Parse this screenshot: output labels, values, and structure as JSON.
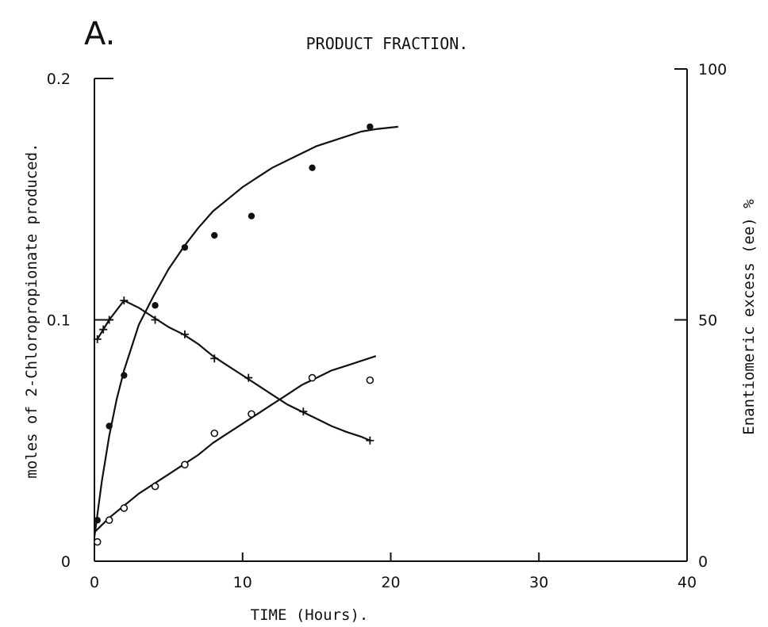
{
  "chart_data": {
    "type": "scatter",
    "panel_label": "A.",
    "title": "PRODUCT FRACTION.",
    "xlabel": "TIME (Hours).",
    "ylabel": "moles of 2-Chloropropionate produced.",
    "y2label": "Enantiomeric excess (ee) %",
    "xlim": [
      0,
      40
    ],
    "ylim": [
      0,
      0.2
    ],
    "y2lim": [
      0,
      100
    ],
    "xticks": [
      0,
      10,
      20,
      30,
      40
    ],
    "xtick_labels": [
      "0",
      "10",
      "20",
      "30",
      "40"
    ],
    "yticks": [
      0,
      0.1,
      0.2
    ],
    "ytick_labels": [
      "0",
      "0.1",
      "0.2"
    ],
    "y2ticks": [
      0,
      50,
      100
    ],
    "y2tick_labels": [
      "0",
      "50",
      "100"
    ],
    "grid": false,
    "legend": "none",
    "series": [
      {
        "marker": "filled-circle",
        "axis": "left",
        "x": [
          0.2,
          1.0,
          2.0,
          4.1,
          6.1,
          8.1,
          10.6,
          14.7,
          18.6
        ],
        "y": [
          0.017,
          0.056,
          0.077,
          0.106,
          0.13,
          0.135,
          0.143,
          0.163,
          0.18
        ],
        "fit_curve": {
          "x": [
            0,
            0.5,
            1,
            1.5,
            2,
            3,
            4,
            5,
            6,
            7,
            8,
            9,
            10,
            11,
            12,
            13,
            14,
            15,
            16,
            17,
            18,
            19,
            20.5
          ],
          "y": [
            0.01,
            0.033,
            0.052,
            0.067,
            0.079,
            0.098,
            0.11,
            0.121,
            0.13,
            0.138,
            0.145,
            0.15,
            0.155,
            0.159,
            0.163,
            0.166,
            0.169,
            0.172,
            0.174,
            0.176,
            0.178,
            0.179,
            0.18
          ]
        }
      },
      {
        "marker": "open-circle",
        "axis": "left",
        "x": [
          0.2,
          1.0,
          2.0,
          4.1,
          6.1,
          8.1,
          10.6,
          14.7,
          18.6
        ],
        "y": [
          0.008,
          0.017,
          0.022,
          0.031,
          0.04,
          0.053,
          0.061,
          0.076,
          0.075
        ],
        "fit_curve": {
          "x": [
            0,
            1,
            2,
            3,
            4,
            5,
            6,
            7,
            8,
            9,
            10,
            11,
            12,
            13,
            14,
            15,
            16,
            17,
            18,
            19
          ],
          "y": [
            0.012,
            0.018,
            0.023,
            0.028,
            0.032,
            0.036,
            0.04,
            0.044,
            0.049,
            0.053,
            0.057,
            0.061,
            0.065,
            0.069,
            0.073,
            0.076,
            0.079,
            0.081,
            0.083,
            0.085
          ]
        }
      },
      {
        "marker": "plus",
        "axis": "right",
        "x": [
          0.2,
          0.6,
          1.0,
          2.0,
          4.1,
          6.1,
          8.1,
          10.4,
          14.1,
          18.6
        ],
        "y": [
          46,
          48,
          50,
          54,
          50,
          47,
          42,
          38,
          31,
          25
        ],
        "fit_curve": {
          "x": [
            0.2,
            1,
            2,
            3,
            4,
            5,
            6,
            7,
            8,
            9,
            10,
            11,
            12,
            13,
            14,
            15,
            16,
            17,
            18,
            18.6
          ],
          "y": [
            46,
            50,
            54,
            52.5,
            50.5,
            48.5,
            47,
            45,
            42.5,
            40.5,
            38.5,
            36.5,
            34.5,
            32.5,
            31,
            29.5,
            28,
            26.8,
            25.8,
            25
          ]
        }
      }
    ]
  }
}
